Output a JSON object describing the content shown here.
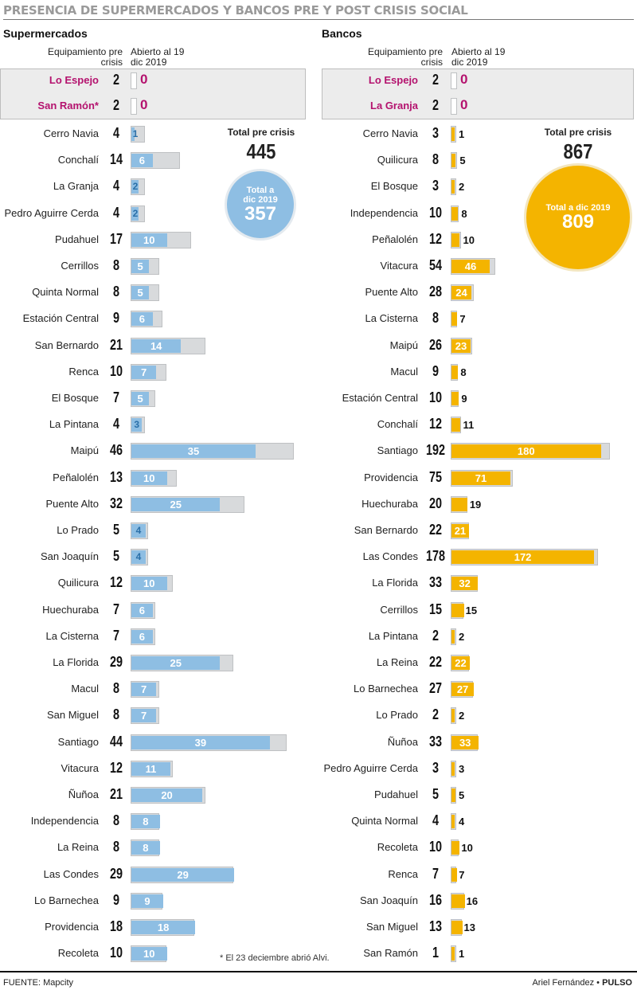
{
  "title": "PRESENCIA DE SUPERMERCADOS Y BANCOS PRE Y POST CRISIS SOCIAL",
  "footer": {
    "source": "FUENTE: Mapcity",
    "author": "Ariel Fernández",
    "separator": "•",
    "outlet": "PULSO"
  },
  "note": "* El 23 deciembre abrió Alvi.",
  "colors": {
    "super": "#8ebee3",
    "bank": "#f4b400",
    "highlight": "#b4126e",
    "pre_bar": "#d8dadc"
  },
  "panels": [
    {
      "id": "supermercados",
      "section_title": "Supermercados",
      "header_pre": "Equipamiento pre crisis",
      "header_post": "Abierto al 19 dic 2019",
      "total_pre_label": "Total pre crisis",
      "total_pre": "445",
      "total_post_label": "Total a dic 2019",
      "total_post": "357",
      "highlighted": [
        {
          "name": "Lo Espejo",
          "pre": 2,
          "post": 0
        },
        {
          "name": "San Ramón*",
          "pre": 2,
          "post": 0
        }
      ]
    },
    {
      "id": "bancos",
      "section_title": "Bancos",
      "header_pre": "Equipamiento pre crisis",
      "header_post": "Abierto al 19 dic 2019",
      "total_pre_label": "Total pre crisis",
      "total_pre": "867",
      "total_post_label": "Total a dic 2019",
      "total_post": "809",
      "highlighted": [
        {
          "name": "Lo Espejo",
          "pre": 2,
          "post": 0
        },
        {
          "name": "La Granja",
          "pre": 2,
          "post": 0
        }
      ]
    }
  ],
  "chart_data": [
    {
      "type": "bar",
      "title": "Supermercados",
      "categories": [
        "Cerro Navia",
        "Conchalí",
        "La Granja",
        "Pedro Aguirre Cerda",
        "Pudahuel",
        "Cerrillos",
        "Quinta Normal",
        "Estación Central",
        "San Bernardo",
        "Renca",
        "El Bosque",
        "La Pintana",
        "Maipú",
        "Peñalolén",
        "Puente Alto",
        "Lo Prado",
        "San Joaquín",
        "Quilicura",
        "Huechuraba",
        "La Cisterna",
        "La Florida",
        "Macul",
        "San Miguel",
        "Santiago",
        "Vitacura",
        "Ñuñoa",
        "Independencia",
        "La Reina",
        "Las Condes",
        "Lo Barnechea",
        "Providencia",
        "Recoleta"
      ],
      "series": [
        {
          "name": "Equipamiento pre crisis",
          "values": [
            4,
            14,
            4,
            4,
            17,
            8,
            8,
            9,
            21,
            10,
            7,
            4,
            46,
            13,
            32,
            5,
            5,
            12,
            7,
            7,
            29,
            8,
            8,
            44,
            12,
            21,
            8,
            8,
            29,
            9,
            18,
            10
          ]
        },
        {
          "name": "Abierto al 19 dic 2019",
          "values": [
            1,
            6,
            2,
            2,
            10,
            5,
            5,
            6,
            14,
            7,
            5,
            3,
            35,
            10,
            25,
            4,
            4,
            10,
            6,
            6,
            25,
            7,
            7,
            39,
            11,
            20,
            8,
            8,
            29,
            9,
            18,
            10
          ]
        }
      ]
    },
    {
      "type": "bar",
      "title": "Bancos",
      "categories": [
        "Cerro Navia",
        "Quilicura",
        "El Bosque",
        "Independencia",
        "Peñalolén",
        "Vitacura",
        "Puente Alto",
        "La Cisterna",
        "Maipú",
        "Macul",
        "Estación Central",
        "Conchalí",
        "Santiago",
        "Providencia",
        "Huechuraba",
        "San Bernardo",
        "Las Condes",
        "La Florida",
        "Cerrillos",
        "La Pintana",
        "La Reina",
        "Lo Barnechea",
        "Lo Prado",
        "Ñuñoa",
        "Pedro Aguirre Cerda",
        "Pudahuel",
        "Quinta Normal",
        "Recoleta",
        "Renca",
        "San Joaquín",
        "San Miguel",
        "San Ramón"
      ],
      "series": [
        {
          "name": "Equipamiento pre crisis",
          "values": [
            3,
            8,
            3,
            10,
            12,
            54,
            28,
            8,
            26,
            9,
            10,
            12,
            192,
            75,
            20,
            22,
            178,
            33,
            15,
            2,
            22,
            27,
            2,
            33,
            3,
            5,
            4,
            10,
            7,
            16,
            13,
            1
          ]
        },
        {
          "name": "Abierto al 19 dic 2019",
          "values": [
            1,
            5,
            2,
            8,
            10,
            46,
            24,
            7,
            23,
            8,
            9,
            11,
            180,
            71,
            19,
            21,
            172,
            32,
            15,
            2,
            22,
            27,
            2,
            33,
            3,
            5,
            4,
            10,
            7,
            16,
            13,
            1
          ]
        }
      ]
    }
  ]
}
